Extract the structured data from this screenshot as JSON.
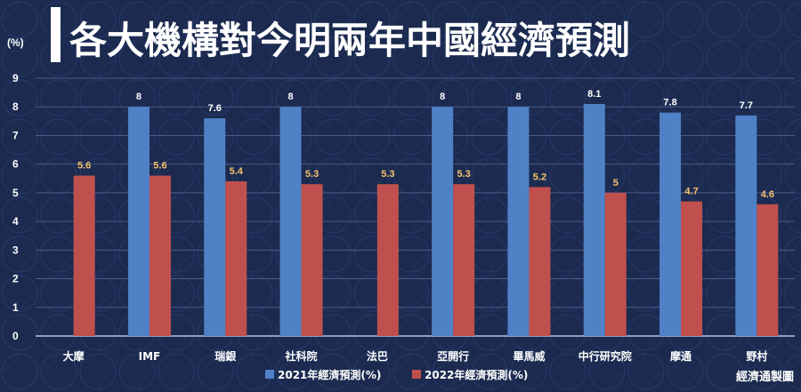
{
  "chart_data": {
    "type": "bar",
    "title": "各大機構對今明兩年中國經濟預測",
    "unit_label": "(%)",
    "categories": [
      "大摩",
      "IMF",
      "瑞銀",
      "社科院",
      "法巴",
      "亞開行",
      "畢馬威",
      "中行研究院",
      "摩通",
      "野村"
    ],
    "series": [
      {
        "name": "2021年經濟預測(%)",
        "color": "#4f81c7",
        "values": [
          null,
          8,
          7.6,
          8,
          null,
          8,
          8,
          8.1,
          7.8,
          7.7
        ]
      },
      {
        "name": "2022年經濟預測(%)",
        "color": "#c0504d",
        "values": [
          5.6,
          5.6,
          5.4,
          5.3,
          5.3,
          5.3,
          5.2,
          5,
          4.7,
          4.6
        ]
      }
    ],
    "ylim": [
      0,
      9
    ],
    "yticks": [
      0,
      1,
      2,
      3,
      4,
      5,
      6,
      7,
      8,
      9
    ],
    "grid": true,
    "legend_position": "bottom-center",
    "label_colors": {
      "2021": "#ffffff",
      "2022": "#f5c26b"
    },
    "credit": "經濟通製圖"
  }
}
